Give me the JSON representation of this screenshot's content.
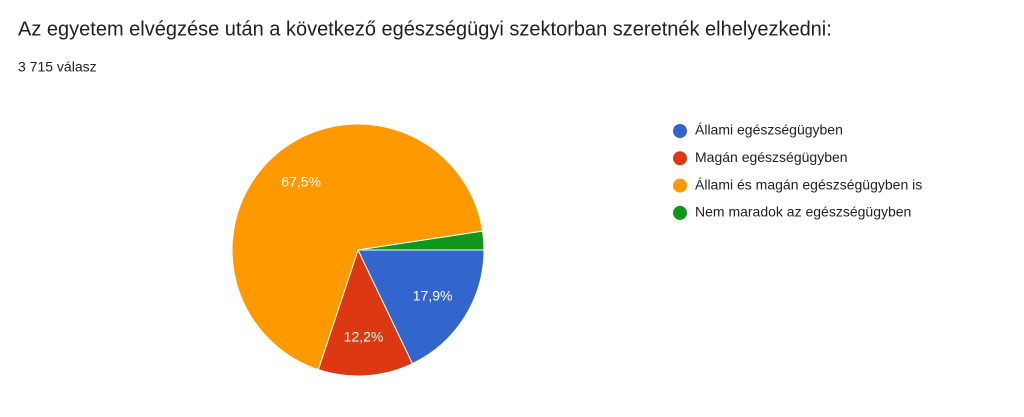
{
  "chart_data": {
    "type": "pie",
    "title": "Az egyetem elvégzése után a következő egészségügyi szektorban szeretnék elhelyezkedni:",
    "subtitle": "3 715 válasz",
    "categories": [
      "Állami egészségügyben",
      "Magán egészségügyben",
      "Állami és magán egészségügyben is",
      "Nem maradok az egészségügyben"
    ],
    "values": [
      17.9,
      12.2,
      67.5,
      2.4
    ],
    "value_labels": [
      "17,9%",
      "12,2%",
      "67,5%",
      null
    ],
    "colors": [
      "#3366cc",
      "#dc3912",
      "#ff9900",
      "#109618"
    ],
    "legend": "right"
  }
}
